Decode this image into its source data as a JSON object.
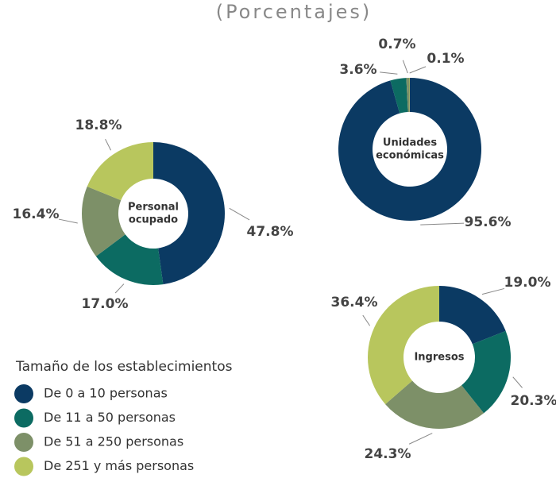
{
  "title": "(Porcentajes)",
  "legend": {
    "title": "Tamaño de los establecimientos",
    "categories": [
      "De 0 a 10 personas",
      "De 11 a 50 personas",
      "De 51 a 250 personas",
      "De 251 y más personas"
    ],
    "colors": [
      "#0b3a63",
      "#0c6b62",
      "#7d9068",
      "#b8c65d"
    ]
  },
  "chart_data": [
    {
      "type": "donut",
      "center_label": [
        "Personal",
        "ocupado"
      ],
      "values": [
        47.8,
        17.0,
        16.4,
        18.8
      ],
      "value_labels": [
        "47.8%",
        "17.0%",
        "16.4%",
        "18.8%"
      ]
    },
    {
      "type": "donut",
      "center_label": [
        "Unidades",
        "económicas"
      ],
      "values": [
        95.6,
        3.6,
        0.7,
        0.1
      ],
      "value_labels": [
        "95.6%",
        "3.6%",
        "0.7%",
        "0.1%"
      ]
    },
    {
      "type": "donut",
      "center_label": [
        "Ingresos"
      ],
      "values": [
        19.0,
        20.3,
        24.3,
        36.4
      ],
      "value_labels": [
        "19.0%",
        "20.3%",
        "24.3%",
        "36.4%"
      ]
    }
  ]
}
